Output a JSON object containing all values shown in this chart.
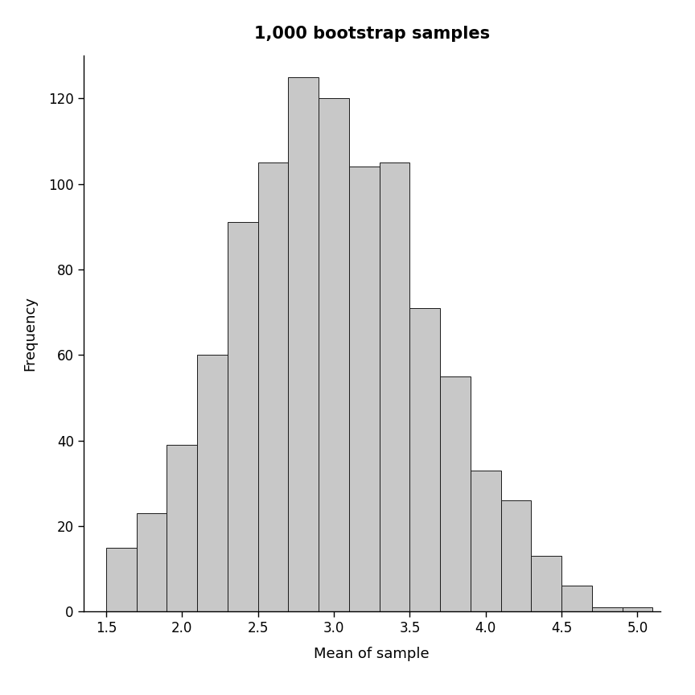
{
  "title": "1,000 bootstrap samples",
  "xlabel": "Mean of sample",
  "ylabel": "Frequency",
  "bar_color": "#c8c8c8",
  "bar_edge_color": "#1a1a1a",
  "bar_edge_width": 0.7,
  "xlim": [
    1.35,
    5.15
  ],
  "ylim": [
    0,
    130
  ],
  "xticks": [
    1.5,
    2.0,
    2.5,
    3.0,
    3.5,
    4.0,
    4.5,
    5.0
  ],
  "yticks": [
    0,
    20,
    40,
    60,
    80,
    100,
    120
  ],
  "frequencies": [
    15,
    23,
    39,
    60,
    91,
    105,
    125,
    120,
    104,
    105,
    71,
    55,
    33,
    26,
    13,
    6,
    1,
    1
  ],
  "bin_start": 1.5,
  "bin_width": 0.2,
  "title_fontsize": 15,
  "label_fontsize": 13,
  "tick_fontsize": 12,
  "background_color": "#ffffff"
}
